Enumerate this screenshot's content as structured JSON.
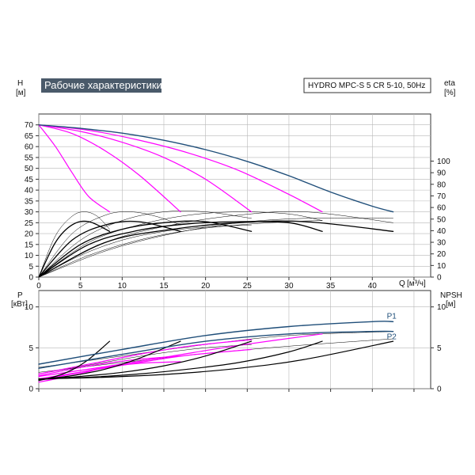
{
  "header": {
    "title": "Рабочие характеристики",
    "model": "HYDRO MPC-S 5 CR 5-10, 50Hz"
  },
  "colors": {
    "title_bg": "#4a5a6a",
    "pump_curve": "#1f4e79",
    "system_curve": "#ff00ff",
    "efficiency": "#000000",
    "grid": "#b8b8b8"
  },
  "chart_data": [
    {
      "id": "head",
      "type": "line",
      "ylabel_left": "H",
      "yunit_left": "[м]",
      "ylabel_right": "eta",
      "yunit_right": "[%]",
      "xlabel": "Q",
      "xunit": "[м³/ч]",
      "xlim": [
        0,
        47
      ],
      "ylim": [
        0,
        75
      ],
      "yticks_left": [
        "0",
        "5",
        "10",
        "15",
        "20",
        "25",
        "30",
        "35",
        "40",
        "45",
        "50",
        "55",
        "60",
        "65",
        "70"
      ],
      "yticks_right": [
        "0",
        "10",
        "20",
        "30",
        "40",
        "50",
        "60",
        "70",
        "80",
        "90",
        "100"
      ],
      "xticks": [
        "0",
        "5",
        "10",
        "15",
        "20",
        "25",
        "30",
        "35",
        "40"
      ],
      "grid": true,
      "series": [
        {
          "role": "pump",
          "x": [
            0,
            5,
            10,
            15,
            20,
            25,
            30,
            35,
            40,
            42.5
          ],
          "y": [
            70,
            68.4,
            66.2,
            62.9,
            58.6,
            53.2,
            46.6,
            39.1,
            32.6,
            30
          ]
        },
        {
          "role": "sys",
          "x": [
            0,
            2,
            4,
            6,
            8.5
          ],
          "y": [
            70,
            60,
            48,
            37,
            30
          ]
        },
        {
          "role": "sys",
          "x": [
            0,
            4,
            8,
            12,
            17
          ],
          "y": [
            70,
            66,
            58,
            47,
            30
          ]
        },
        {
          "role": "sys",
          "x": [
            0,
            5,
            10,
            15,
            20,
            25.5
          ],
          "y": [
            70,
            67,
            62,
            55,
            45,
            30
          ]
        },
        {
          "role": "sys",
          "x": [
            0,
            6,
            12,
            18,
            24,
            30,
            34
          ],
          "y": [
            70,
            67.5,
            63,
            57,
            49,
            38,
            30
          ]
        },
        {
          "role": "eta",
          "x": [
            0,
            2,
            4,
            6,
            8.5
          ],
          "y": [
            0,
            16,
            24,
            25.5,
            21
          ]
        },
        {
          "role": "eta",
          "x": [
            0,
            4,
            8,
            12,
            17
          ],
          "y": [
            0,
            17,
            24,
            25.5,
            21
          ]
        },
        {
          "role": "eta",
          "x": [
            0,
            5,
            10,
            15,
            20,
            25.5
          ],
          "y": [
            0,
            15,
            22,
            25,
            25.5,
            21
          ]
        },
        {
          "role": "eta",
          "x": [
            0,
            6,
            12,
            18,
            24,
            30,
            34
          ],
          "y": [
            0,
            15,
            21.5,
            24.5,
            25.5,
            25,
            21
          ]
        },
        {
          "role": "eta",
          "x": [
            0,
            8,
            16,
            24,
            32,
            42.5
          ],
          "y": [
            0,
            16,
            22,
            25,
            25.5,
            21
          ]
        },
        {
          "role": "thin",
          "x": [
            0,
            2,
            4,
            5.5,
            7,
            8.5
          ],
          "y": [
            0,
            19,
            28,
            30,
            28,
            22
          ]
        },
        {
          "role": "thin",
          "x": [
            0,
            4,
            8,
            11,
            14,
            17
          ],
          "y": [
            0,
            20,
            28.5,
            30,
            28,
            24
          ]
        },
        {
          "role": "thin",
          "x": [
            0,
            5,
            10,
            15,
            20,
            25.5
          ],
          "y": [
            0,
            17,
            26,
            30,
            30,
            27
          ]
        },
        {
          "role": "thin",
          "x": [
            0,
            6,
            12,
            18,
            24,
            30,
            34
          ],
          "y": [
            0,
            16,
            24,
            28.5,
            30,
            29,
            26
          ]
        },
        {
          "role": "thin",
          "x": [
            0,
            8,
            16,
            24,
            32,
            42.5
          ],
          "y": [
            0,
            16,
            24,
            28.5,
            30,
            25
          ]
        },
        {
          "role": "thin",
          "x": [
            0,
            8,
            16,
            24,
            32,
            42.5
          ],
          "y": [
            0,
            12,
            20,
            25,
            27,
            27
          ]
        },
        {
          "role": "thin",
          "x": [
            0,
            6,
            12,
            18,
            24,
            30,
            34
          ],
          "y": [
            0,
            10,
            17,
            21.5,
            24,
            25.5,
            26
          ]
        },
        {
          "role": "thin",
          "x": [
            0,
            5,
            10,
            15,
            20,
            25.5
          ],
          "y": [
            0,
            10,
            17,
            21,
            23,
            24
          ]
        }
      ]
    },
    {
      "id": "power",
      "type": "line",
      "ylabel_left": "P",
      "yunit_left": "[кВт]",
      "ylabel_right": "NPSH",
      "yunit_right": "[м]",
      "xlim": [
        0,
        47
      ],
      "ylim": [
        0,
        12
      ],
      "yticks_left": [
        "0",
        "5",
        "10"
      ],
      "yticks_right": [
        "0",
        "5",
        "10"
      ],
      "grid": true,
      "series": [
        {
          "role": "pump",
          "name": "P1",
          "x": [
            0,
            10,
            20,
            30,
            40,
            42.5
          ],
          "y": [
            3,
            4.8,
            6.5,
            7.6,
            8.2,
            8.2
          ]
        },
        {
          "role": "pump",
          "name": "P2",
          "x": [
            0,
            10,
            20,
            30,
            40,
            42.5
          ],
          "y": [
            2.5,
            4.2,
            5.8,
            6.7,
            7,
            7
          ]
        },
        {
          "role": "npsh",
          "x": [
            0,
            2,
            4,
            6,
            8.5
          ],
          "y": [
            1,
            1.5,
            2.3,
            3.6,
            5.8
          ]
        },
        {
          "role": "npsh",
          "x": [
            0,
            4,
            8,
            12,
            17
          ],
          "y": [
            1.1,
            1.6,
            2.4,
            3.7,
            5.8
          ]
        },
        {
          "role": "npsh",
          "x": [
            0,
            5,
            10,
            15,
            20,
            25.5
          ],
          "y": [
            1.1,
            1.5,
            2,
            2.8,
            4,
            5.8
          ]
        },
        {
          "role": "npsh",
          "x": [
            0,
            6,
            12,
            18,
            24,
            30,
            34
          ],
          "y": [
            1.2,
            1.4,
            1.8,
            2.4,
            3.2,
            4.5,
            5.8
          ]
        },
        {
          "role": "npsh",
          "x": [
            0,
            8,
            16,
            24,
            32,
            42.5
          ],
          "y": [
            1.2,
            1.4,
            1.8,
            2.5,
            3.6,
            5.8
          ]
        },
        {
          "role": "sys",
          "x": [
            0,
            3,
            6,
            8.5
          ],
          "y": [
            0.8,
            1.4,
            2.1,
            2.8
          ]
        },
        {
          "role": "sys",
          "x": [
            0,
            4,
            8,
            12,
            17
          ],
          "y": [
            1,
            1.8,
            2.6,
            3.1,
            3.3
          ]
        },
        {
          "role": "sys",
          "x": [
            0,
            6,
            12,
            18,
            25.5
          ],
          "y": [
            1.2,
            2.2,
            3.2,
            4.1,
            4.8
          ]
        },
        {
          "role": "sys",
          "x": [
            0,
            8,
            16,
            24,
            34
          ],
          "y": [
            1.5,
            2.7,
            4,
            5.3,
            6.7
          ]
        },
        {
          "role": "sys",
          "x": [
            0,
            4,
            8,
            12,
            17
          ],
          "y": [
            1.6,
            2.4,
            3.1,
            3.6,
            4
          ]
        },
        {
          "role": "sys",
          "x": [
            0,
            6,
            12,
            18,
            25.5
          ],
          "y": [
            1.8,
            3,
            4.2,
            5.2,
            6
          ]
        },
        {
          "role": "thin",
          "x": [
            0,
            10,
            20,
            30,
            42.5
          ],
          "y": [
            2,
            3.2,
            4.3,
            5.2,
            6.1
          ]
        },
        {
          "role": "thin",
          "x": [
            0,
            10,
            20,
            30,
            42.5
          ],
          "y": [
            2.6,
            4,
            5.4,
            6.5,
            7
          ]
        },
        {
          "role": "thin",
          "x": [
            0,
            5,
            10,
            15,
            20,
            25.5
          ],
          "y": [
            1.8,
            2.7,
            3.6,
            4.4,
            5,
            5.4
          ]
        }
      ]
    }
  ]
}
